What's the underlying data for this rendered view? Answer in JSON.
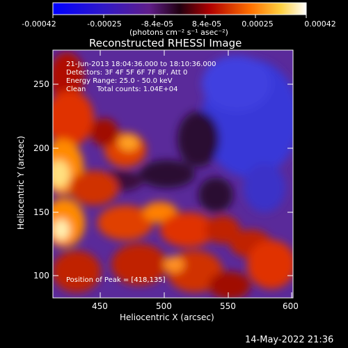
{
  "colorbar": {
    "ticks": [
      "-0.00042",
      "-0.00025",
      "-8.4e-05",
      "8.4e-05",
      "0.00025",
      "0.00042"
    ],
    "unit_label": "(photons cm⁻² s⁻¹ asec⁻²)"
  },
  "plot": {
    "title": "Reconstructed RHESSI Image",
    "info_lines": [
      "21-Jun-2013 18:04:36.000 to 18:10:36.000",
      "Detectors: 3F 4F 5F 6F 7F 8F, Att 0",
      "Energy Range: 25.0 - 50.0 keV",
      "Clean     Total counts: 1.04E+04"
    ],
    "peak_label": "Position of Peak = [418,135]",
    "xlabel": "Heliocentric X (arcsec)",
    "ylabel": "Heliocentric Y (arcsec)",
    "xticks": [
      "450",
      "500",
      "550",
      "600"
    ],
    "yticks": [
      "250",
      "200",
      "150",
      "100"
    ]
  },
  "timestamp": "14-May-2022 21:36",
  "colors": {
    "background": "#000000",
    "colormap": [
      "#0000ff",
      "#4b1ca8",
      "#6a2a8a",
      "#3a0a3a",
      "#8a0000",
      "#e02000",
      "#ff8a00",
      "#ffe07a",
      "#ffffff"
    ]
  }
}
